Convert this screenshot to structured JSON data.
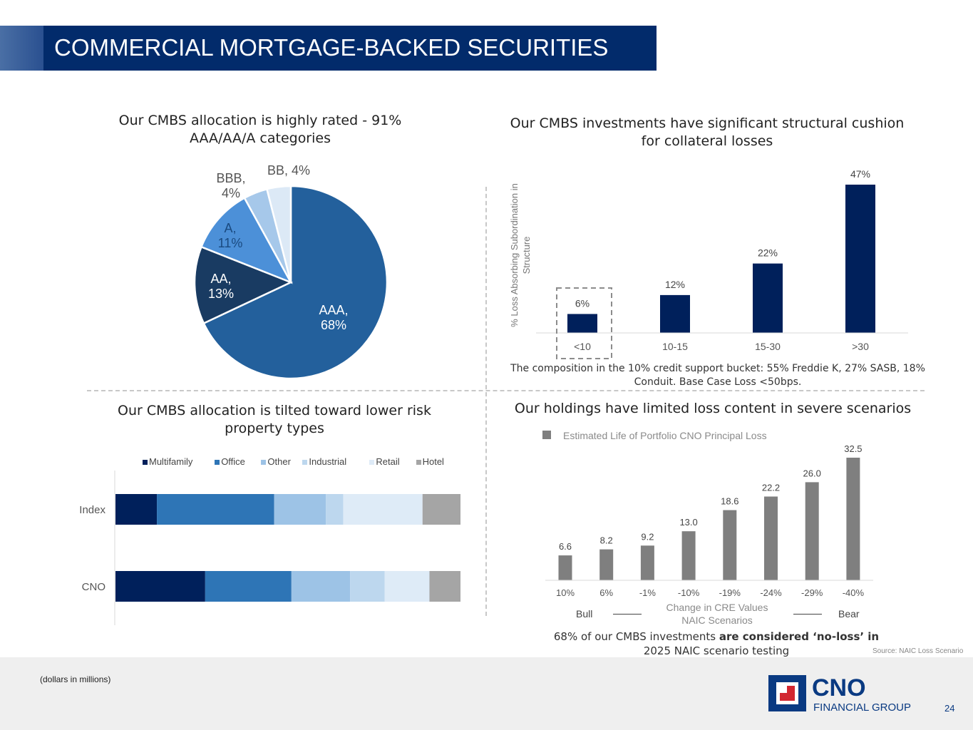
{
  "header": {
    "title": "COMMERCIAL MORTGAGE-BACKED SECURITIES"
  },
  "chart_data": [
    {
      "type": "pie",
      "title": "Our CMBS allocation is highly rated - 91% AAA/AA/A categories",
      "categories": [
        "AAA",
        "AA",
        "A",
        "BBB",
        "BB"
      ],
      "values": [
        68,
        13,
        11,
        4,
        4
      ],
      "labels": [
        "AAA, 68%",
        "AA, 13%",
        "A, 11%",
        "BBB, 4%",
        "BB, 4%"
      ],
      "colors": [
        "#23609c",
        "#193b62",
        "#4c90d8",
        "#a6c8ea",
        "#dce9f6"
      ]
    },
    {
      "type": "bar",
      "title": "Our CMBS investments have significant structural cushion for collateral losses",
      "ylabel": "% Loss Absorbing Subordination in Structure",
      "categories": [
        "<10",
        "10-15",
        "15-30",
        ">30"
      ],
      "values": [
        6,
        12,
        22,
        47
      ],
      "data_labels": [
        "6%",
        "12%",
        "22%",
        "47%"
      ],
      "color": "#00205b",
      "note": "The composition in the 10% credit support bucket: 55% Freddie K, 27% SASB, 18% Conduit.  Base Case Loss <50bps."
    },
    {
      "type": "bar",
      "orientation": "horizontal",
      "stacked": "percent",
      "title": "Our CMBS allocation is tilted toward lower risk property types",
      "categories": [
        "Index",
        "CNO"
      ],
      "series": [
        {
          "name": "Multifamily",
          "values": [
            12,
            26
          ],
          "color": "#00205b"
        },
        {
          "name": "Office",
          "values": [
            34,
            25
          ],
          "color": "#2e75b6"
        },
        {
          "name": "Other",
          "values": [
            15,
            17
          ],
          "color": "#9dc3e6"
        },
        {
          "name": "Industrial",
          "values": [
            5,
            10
          ],
          "color": "#bdd7ee"
        },
        {
          "name": "Retail",
          "values": [
            23,
            13
          ],
          "color": "#deebf7"
        },
        {
          "name": "Hotel",
          "values": [
            11,
            9
          ],
          "color": "#a5a5a5"
        }
      ],
      "legend": "top"
    },
    {
      "type": "bar",
      "title": "Our holdings have limited loss content in severe scenarios",
      "series": [
        {
          "name": "Estimated Life of Portfolio CNO Principal Loss",
          "values": [
            6.6,
            8.2,
            9.2,
            13.0,
            18.6,
            22.2,
            26.0,
            32.5
          ],
          "color": "#7f7f7f"
        }
      ],
      "categories": [
        "10%",
        "6%",
        "-1%",
        "-10%",
        "-19%",
        "-24%",
        "-29%",
        "-40%"
      ],
      "data_labels": [
        "6.6",
        "8.2",
        "9.2",
        "13.0",
        "18.6",
        "22.2",
        "26.0",
        "32.5"
      ],
      "xlabel": "Change in CRE Values",
      "xlabel2": "NAIC Scenarios",
      "bull_label": "Bull",
      "bear_label": "Bear",
      "note_normal": "68% of our CMBS investments ",
      "note_bold": "are considered ‘no-loss’ in",
      "note_line2": "2025 NAIC scenario testing",
      "source": "Source: NAIC Loss Scenario",
      "legend": "top-left"
    }
  ],
  "footer": {
    "note": "(dollars in millions)",
    "page_number": "24",
    "logo_text": "CNO",
    "logo_subtext": "FINANCIAL GROUP"
  }
}
